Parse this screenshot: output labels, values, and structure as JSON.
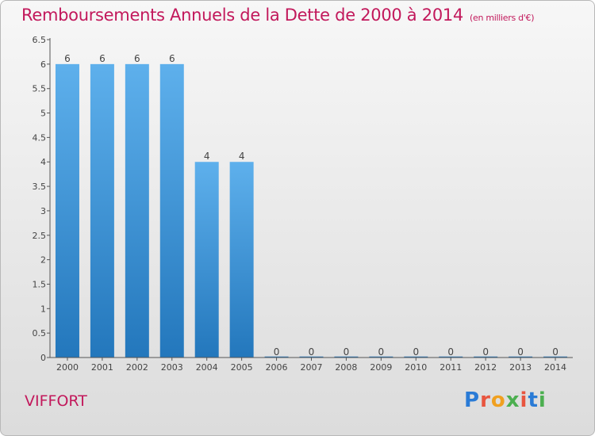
{
  "title": "Remboursements Annuels de la Dette de 2000 à 2014",
  "subtitle": "(en milliers d'€)",
  "place_name": "VIFFORT",
  "logo": {
    "text": "Proxiti",
    "colors": [
      "#2a7bd6",
      "#e8553f",
      "#f0a020",
      "#4caf50",
      "#e8553f",
      "#2a7bd6",
      "#4caf50"
    ]
  },
  "colors": {
    "bar_top": "#5eb0ec",
    "bar_bottom": "#2377bc",
    "accent": "#c2185b",
    "axis": "#555555"
  },
  "chart_data": {
    "type": "bar",
    "categories": [
      "2000",
      "2001",
      "2002",
      "2003",
      "2004",
      "2005",
      "2006",
      "2007",
      "2008",
      "2009",
      "2010",
      "2011",
      "2012",
      "2013",
      "2014"
    ],
    "values": [
      6,
      6,
      6,
      6,
      4,
      4,
      0,
      0,
      0,
      0,
      0,
      0,
      0,
      0,
      0
    ],
    "data_labels": [
      "6",
      "6",
      "6",
      "6",
      "4",
      "4",
      "0",
      "0",
      "0",
      "0",
      "0",
      "0",
      "0",
      "0",
      "0"
    ],
    "yticks": [
      "0",
      "0.5",
      "1",
      "1.5",
      "2",
      "2.5",
      "3",
      "3.5",
      "4",
      "4.5",
      "5",
      "5.5",
      "6",
      "6.5"
    ],
    "ylim": [
      0,
      6.5
    ],
    "grid": false
  }
}
